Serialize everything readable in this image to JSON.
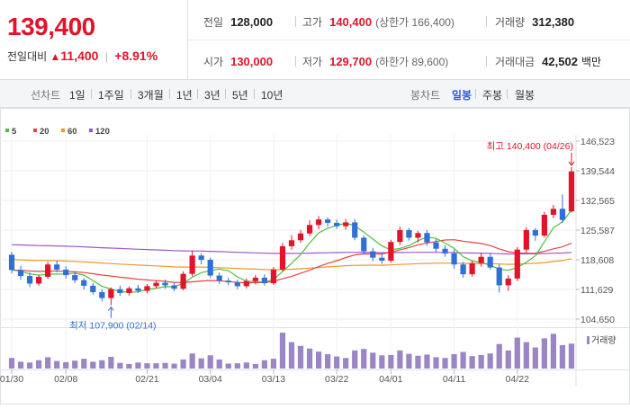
{
  "header": {
    "price": "139,400",
    "change_label": "전일대비",
    "change_value": "11,400",
    "change_pct": "+8.91%",
    "stats": {
      "prev_close": {
        "label": "전일",
        "value": "128,000"
      },
      "high": {
        "label": "고가",
        "value": "140,400",
        "sub": "(상한가 166,400)"
      },
      "volume": {
        "label": "거래량",
        "value": "312,380"
      },
      "open": {
        "label": "시가",
        "value": "130,000"
      },
      "low": {
        "label": "저가",
        "value": "129,700",
        "sub": "(하한가 89,600)"
      },
      "trade_value": {
        "label": "거래대금",
        "value": "42,502",
        "unit": "백만"
      }
    }
  },
  "line_tabs": {
    "category": "선차트",
    "items": [
      "1일",
      "1주일",
      "3개월",
      "1년",
      "3년",
      "5년",
      "10년"
    ]
  },
  "candle_tabs": {
    "category": "봉차트",
    "items": [
      "일봉",
      "주봉",
      "월봉"
    ],
    "active": "일봉"
  },
  "colors": {
    "up": "#e0142a",
    "down": "#2f6fd6",
    "ma5": "#4fbf3a",
    "ma20": "#e64545",
    "ma60": "#f0962a",
    "ma120": "#9b59c8",
    "volume": "#9a86c4"
  },
  "chart_data": {
    "type": "candlestick",
    "legend": [
      "5",
      "20",
      "60",
      "120"
    ],
    "y_ticks": [
      "146,523",
      "139,544",
      "132,565",
      "125,587",
      "118,608",
      "111,629",
      "104,650"
    ],
    "ylim": [
      104650,
      146523
    ],
    "x_tick_labels": [
      "01/30",
      "02/08",
      "02/21",
      "03/04",
      "03/13",
      "03/22",
      "04/01",
      "04/11",
      "04/22"
    ],
    "annotations": {
      "high": "최고 140,400 (04/26)",
      "low": "최저 107,900 (02/14)"
    },
    "volume_label": "거래량",
    "candles": [
      [
        119800,
        116200,
        120500,
        115400
      ],
      [
        116200,
        114800,
        117200,
        113900
      ],
      [
        114800,
        113000,
        115600,
        112200
      ],
      [
        113000,
        114600,
        115100,
        112500
      ],
      [
        114600,
        117500,
        118100,
        114100
      ],
      [
        117500,
        116300,
        118400,
        115700
      ],
      [
        116300,
        115000,
        117100,
        114200
      ],
      [
        115000,
        113800,
        115900,
        113100
      ],
      [
        113800,
        112500,
        114300,
        111600
      ],
      [
        112500,
        111000,
        113100,
        110400
      ],
      [
        111000,
        109600,
        111700,
        108800
      ],
      [
        109600,
        111700,
        112100,
        107900
      ],
      [
        111700,
        110800,
        112500,
        110100
      ],
      [
        110800,
        111900,
        112300,
        110200
      ],
      [
        111900,
        111300,
        112700,
        110800
      ],
      [
        111300,
        112400,
        112900,
        110700
      ],
      [
        112400,
        113200,
        113800,
        111900
      ],
      [
        113200,
        112600,
        114000,
        111800
      ],
      [
        112600,
        111800,
        113300,
        111200
      ],
      [
        111800,
        115300,
        115900,
        111400
      ],
      [
        115300,
        119600,
        120800,
        114700
      ],
      [
        119600,
        118600,
        120100,
        117500
      ],
      [
        118600,
        114900,
        119100,
        114300
      ],
      [
        114900,
        113700,
        115600,
        112900
      ],
      [
        113700,
        113300,
        114400,
        112600
      ],
      [
        113300,
        112400,
        113900,
        111700
      ],
      [
        112400,
        113600,
        114200,
        111900
      ],
      [
        113600,
        114400,
        115000,
        112800
      ],
      [
        114400,
        113100,
        115200,
        112500
      ],
      [
        113100,
        116300,
        116900,
        112700
      ],
      [
        116300,
        121800,
        122600,
        115900
      ],
      [
        121800,
        123200,
        124400,
        121000
      ],
      [
        123200,
        124800,
        125600,
        122600
      ],
      [
        124800,
        126800,
        127900,
        124200
      ],
      [
        126800,
        128100,
        128900,
        125800
      ],
      [
        128100,
        127300,
        128600,
        126400
      ],
      [
        127300,
        126500,
        128100,
        125900
      ],
      [
        126500,
        127400,
        128200,
        125700
      ],
      [
        127400,
        123800,
        128200,
        123200
      ],
      [
        123800,
        120600,
        124300,
        119800
      ],
      [
        120600,
        119100,
        121400,
        118300
      ],
      [
        119100,
        118400,
        120200,
        117600
      ],
      [
        118400,
        122800,
        123300,
        117900
      ],
      [
        122800,
        125600,
        126400,
        122100
      ],
      [
        125600,
        123800,
        126100,
        123100
      ],
      [
        123800,
        124900,
        125400,
        122700
      ],
      [
        124900,
        122700,
        125600,
        121900
      ],
      [
        122700,
        121200,
        123500,
        120400
      ],
      [
        121200,
        120100,
        122000,
        119300
      ],
      [
        120100,
        117500,
        121000,
        116500
      ],
      [
        117500,
        115200,
        118100,
        114400
      ],
      [
        115200,
        117800,
        118400,
        114600
      ],
      [
        117800,
        119300,
        120200,
        117000
      ],
      [
        119300,
        116800,
        120100,
        116300
      ],
      [
        116800,
        112600,
        117600,
        110900
      ],
      [
        112600,
        114200,
        115000,
        111300
      ],
      [
        114200,
        121000,
        121600,
        113600
      ],
      [
        121000,
        125600,
        126300,
        120200
      ],
      [
        125600,
        124300,
        126100,
        123100
      ],
      [
        124300,
        129200,
        129900,
        123800
      ],
      [
        129200,
        130600,
        131500,
        128400
      ],
      [
        130600,
        128000,
        134000,
        127300
      ],
      [
        130000,
        139400,
        140400,
        129700
      ]
    ],
    "volumes": [
      28,
      18,
      16,
      22,
      30,
      20,
      17,
      21,
      26,
      18,
      22,
      31,
      15,
      12,
      16,
      14,
      14,
      15,
      13,
      24,
      40,
      27,
      35,
      24,
      13,
      14,
      16,
      12,
      22,
      26,
      95,
      70,
      60,
      53,
      45,
      38,
      32,
      28,
      48,
      52,
      42,
      35,
      36,
      48,
      39,
      34,
      37,
      30,
      28,
      38,
      44,
      33,
      36,
      40,
      65,
      48,
      82,
      70,
      56,
      80,
      92,
      62,
      66
    ],
    "x_tick_index": [
      0,
      6,
      15,
      22,
      29,
      36,
      42,
      49,
      56
    ]
  }
}
